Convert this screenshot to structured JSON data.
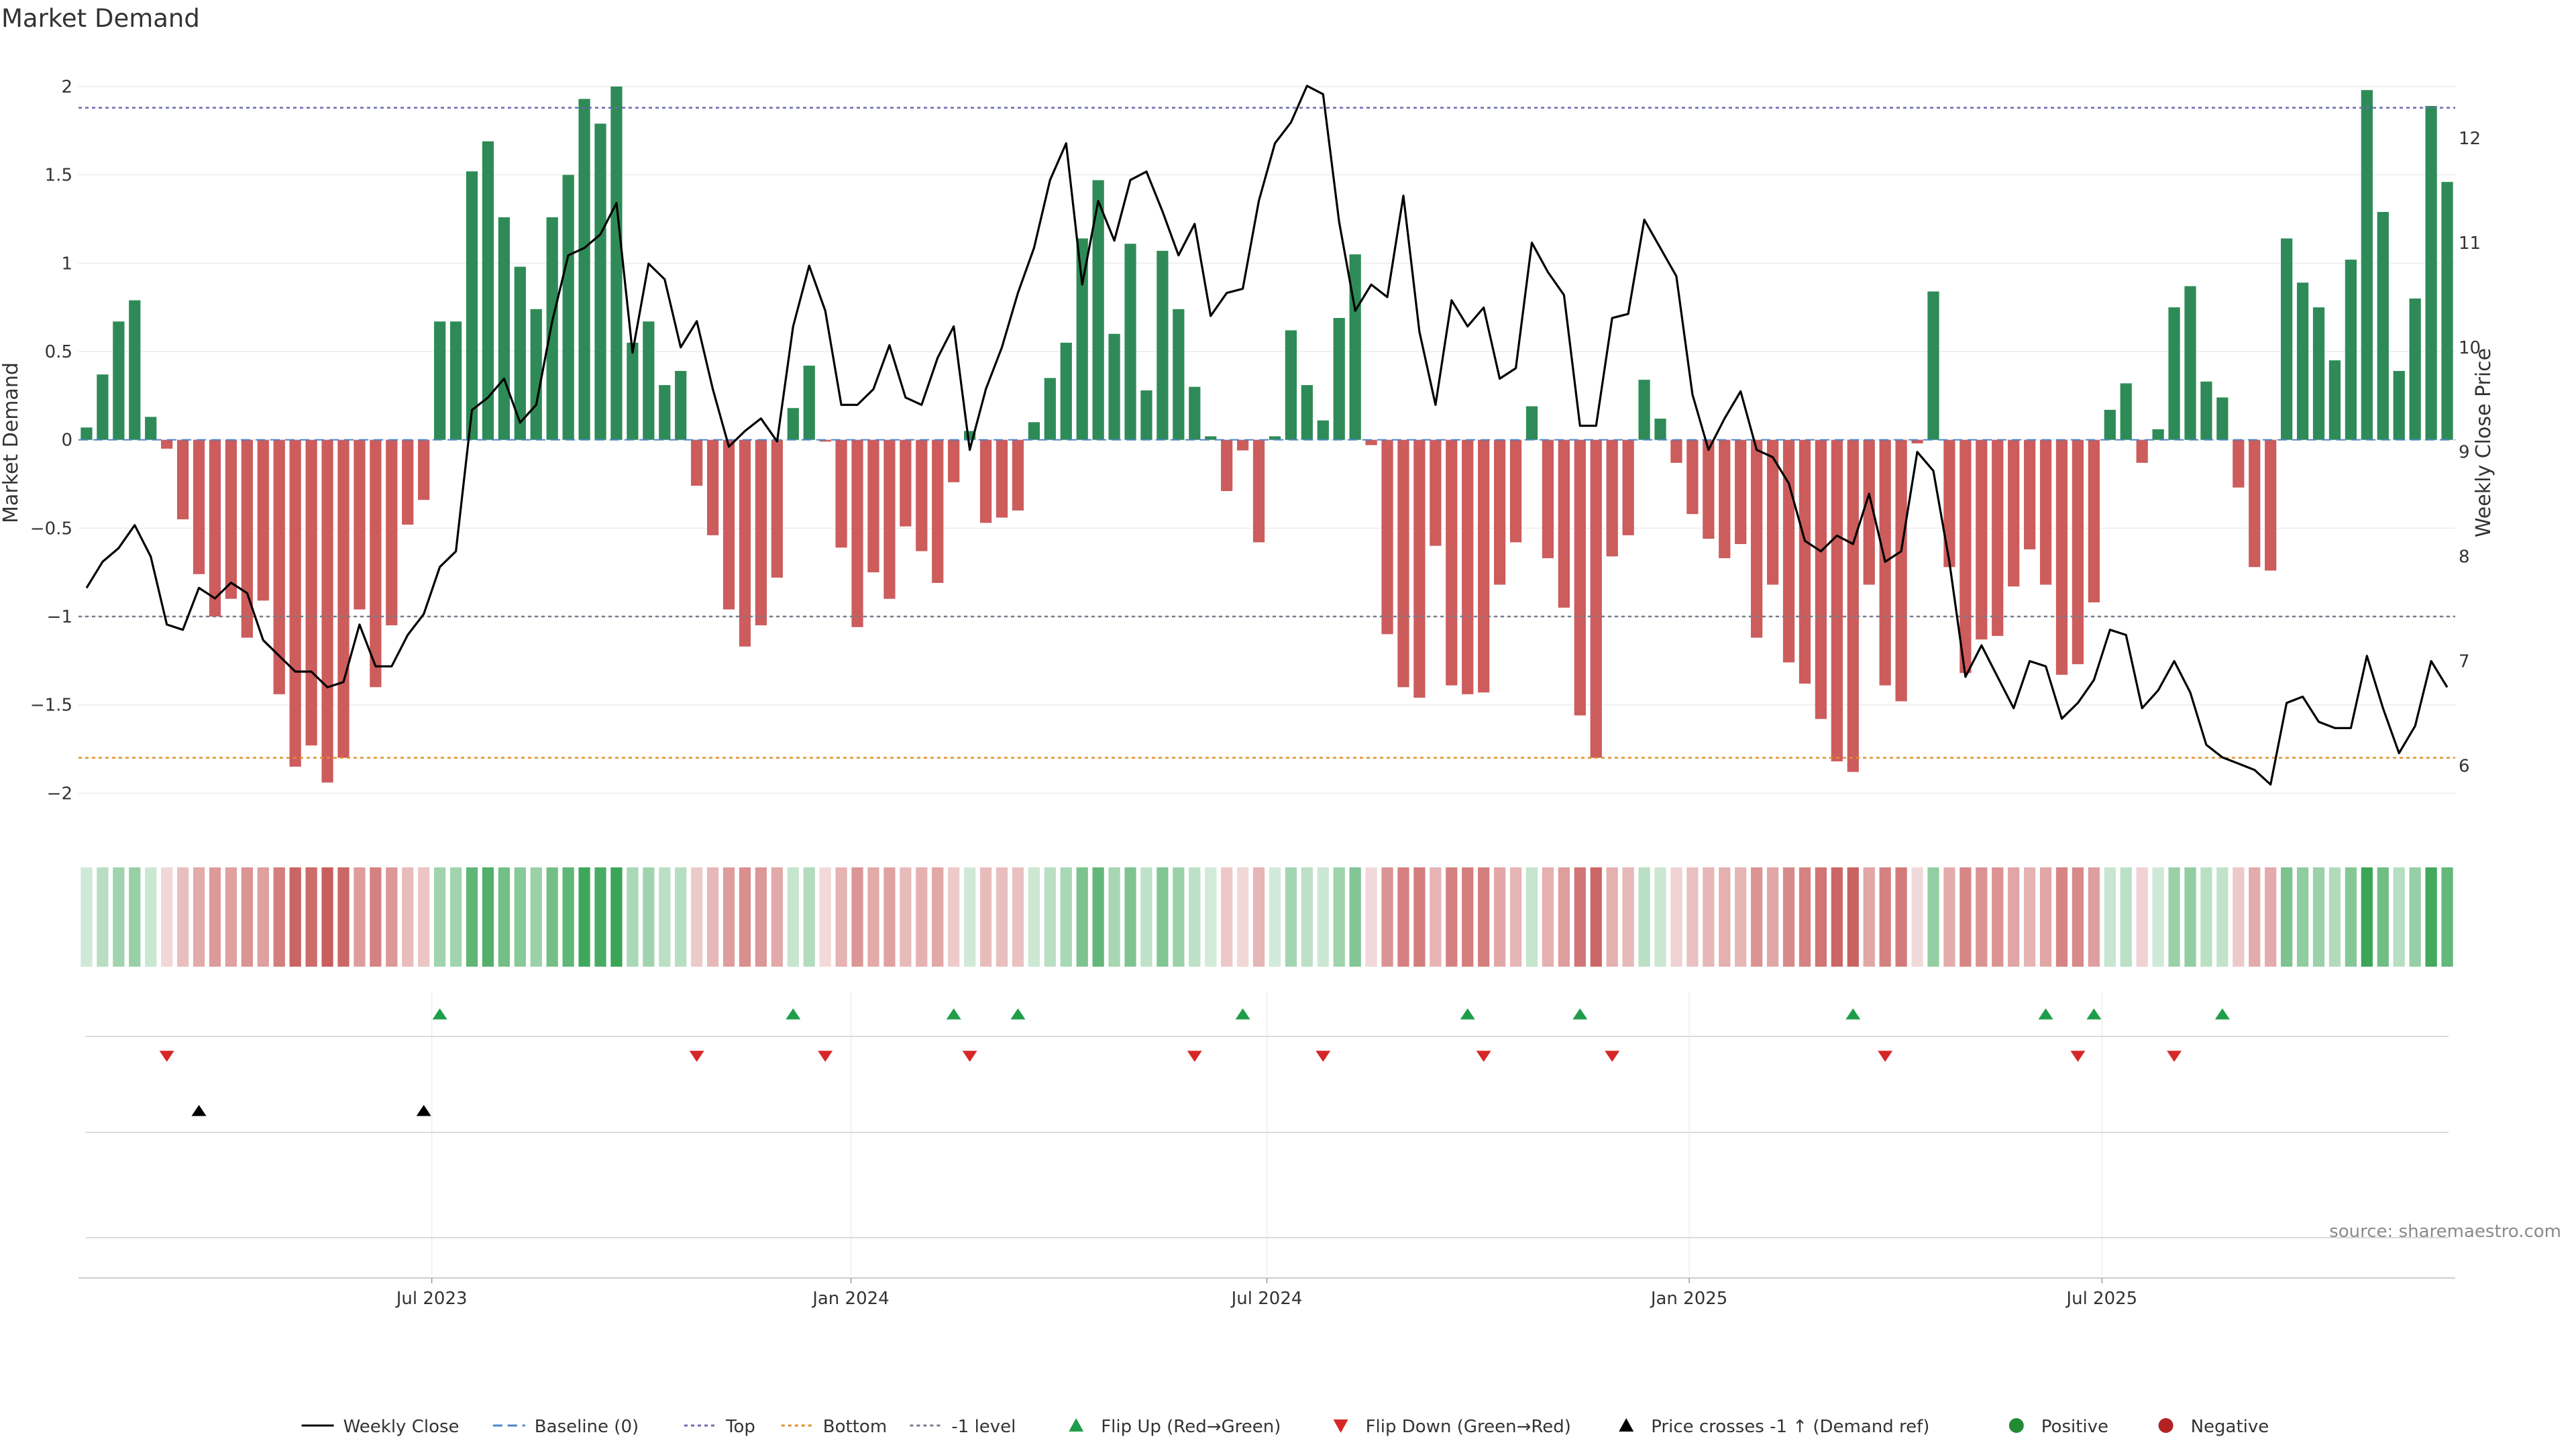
{
  "chart_data": {
    "type": "bar",
    "title": "Market Demand",
    "ylabel_left": "Market Demand",
    "ylabel_right": "Weekly Close Price",
    "ylim_left": [
      -2.2,
      2.3
    ],
    "ylim_right": [
      5.4,
      13.0
    ],
    "yticks_left": [
      2,
      1.5,
      1,
      0.5,
      0,
      -0.5,
      -1,
      -1.5,
      -2
    ],
    "ytick_labels_left": [
      "2",
      "1.5",
      "1",
      "0.5",
      "0",
      "−0.5",
      "−1",
      "−1.5",
      "−2"
    ],
    "yticks_right": [
      12,
      11,
      10,
      9,
      8,
      7,
      6
    ],
    "ytick_labels_right": [
      "12",
      "11",
      "10",
      "9",
      "8",
      "7",
      "6"
    ],
    "x_start_week_index": 0,
    "x_ticks": [
      {
        "week": 21.5,
        "label": "Jul 2023"
      },
      {
        "week": 47.6,
        "label": "Jan 2024"
      },
      {
        "week": 73.5,
        "label": "Jul 2024"
      },
      {
        "week": 99.8,
        "label": "Jan 2025"
      },
      {
        "week": 125.5,
        "label": "Jul 2025"
      }
    ],
    "reference_lines": [
      {
        "name": "Top",
        "value": 1.88,
        "color": "#6b6bb5"
      },
      {
        "name": "Bottom",
        "value": -1.8,
        "color": "#e0902a"
      },
      {
        "name": "-1 level",
        "value": -1.0,
        "color": "#7a7a8a"
      },
      {
        "name": "Baseline (0)",
        "value": 0,
        "color": "#4a86c8"
      }
    ],
    "series": [
      {
        "name": "Market Demand",
        "type": "bar",
        "values": [
          0.07,
          0.37,
          0.67,
          0.79,
          0.13,
          -0.05,
          -0.45,
          -0.76,
          -1.0,
          -0.9,
          -1.12,
          -0.91,
          -1.44,
          -1.85,
          -1.73,
          -1.94,
          -1.8,
          -0.96,
          -1.4,
          -1.05,
          -0.48,
          -0.34,
          0.67,
          0.67,
          1.52,
          1.69,
          1.26,
          0.98,
          0.74,
          1.26,
          1.5,
          1.93,
          1.79,
          2.0,
          0.55,
          0.67,
          0.31,
          0.39,
          -0.26,
          -0.54,
          -0.96,
          -1.17,
          -1.05,
          -0.78,
          0.18,
          0.42,
          -0.01,
          -0.61,
          -1.06,
          -0.75,
          -0.9,
          -0.49,
          -0.63,
          -0.81,
          -0.24,
          0.05,
          -0.47,
          -0.44,
          -0.4,
          0.1,
          0.35,
          0.55,
          1.14,
          1.47,
          0.6,
          1.11,
          0.28,
          1.07,
          0.74,
          0.3,
          0.02,
          -0.29,
          -0.06,
          -0.58,
          0.02,
          0.62,
          0.31,
          0.11,
          0.69,
          1.05,
          -0.03,
          -1.1,
          -1.4,
          -1.46,
          -0.6,
          -1.39,
          -1.44,
          -1.43,
          -0.82,
          -0.58,
          0.19,
          -0.67,
          -0.95,
          -1.56,
          -1.8,
          -0.66,
          -0.54,
          0.34,
          0.12,
          -0.13,
          -0.42,
          -0.56,
          -0.67,
          -0.59,
          -1.12,
          -0.82,
          -1.26,
          -1.38,
          -1.58,
          -1.82,
          -1.88,
          -0.82,
          -1.39,
          -1.48,
          -0.02,
          0.84,
          -0.72,
          -1.32,
          -1.13,
          -1.11,
          -0.83,
          -0.62,
          -0.82,
          -1.33,
          -1.27,
          -0.92,
          0.17,
          0.32,
          -0.13,
          0.06,
          0.75,
          0.87,
          0.33,
          0.24,
          -0.27,
          -0.72,
          -0.74,
          1.14,
          0.89,
          0.75,
          0.45,
          1.02,
          1.98,
          1.29,
          0.39,
          0.8,
          1.89,
          1.46
        ]
      },
      {
        "name": "Weekly Close",
        "type": "line",
        "axis": "right",
        "values": [
          7.7,
          7.95,
          8.08,
          8.3,
          8.0,
          7.35,
          7.3,
          7.7,
          7.6,
          7.75,
          7.65,
          7.2,
          7.05,
          6.9,
          6.9,
          6.75,
          6.8,
          7.35,
          6.95,
          6.95,
          7.25,
          7.45,
          7.9,
          8.05,
          9.4,
          9.52,
          9.7,
          9.28,
          9.45,
          10.25,
          10.88,
          10.95,
          11.08,
          11.38,
          9.95,
          10.8,
          10.65,
          10.0,
          10.25,
          9.6,
          9.05,
          9.2,
          9.32,
          9.1,
          10.2,
          10.78,
          10.35,
          9.45,
          9.45,
          9.6,
          10.02,
          9.52,
          9.45,
          9.9,
          10.2,
          9.02,
          9.6,
          10.0,
          10.52,
          10.95,
          11.6,
          11.95,
          10.6,
          11.4,
          11.02,
          11.6,
          11.68,
          11.3,
          10.88,
          11.18,
          10.3,
          10.52,
          10.56,
          11.4,
          11.95,
          12.15,
          12.5,
          12.42,
          11.2,
          10.35,
          10.6,
          10.48,
          11.45,
          10.15,
          9.45,
          10.45,
          10.2,
          10.38,
          9.7,
          9.8,
          11.0,
          10.72,
          10.5,
          9.25,
          9.25,
          10.28,
          10.32,
          11.22,
          10.95,
          10.68,
          9.55,
          9.02,
          9.32,
          9.58,
          9.02,
          8.95,
          8.7,
          8.15,
          8.05,
          8.2,
          8.12,
          8.6,
          7.95,
          8.05,
          9.0,
          8.82,
          7.95,
          6.85,
          7.15,
          6.85,
          6.55,
          7.0,
          6.95,
          6.45,
          6.6,
          6.82,
          7.3,
          7.25,
          6.55,
          6.72,
          7.0,
          6.7,
          6.2,
          6.08,
          6.02,
          5.96,
          5.82,
          6.6,
          6.66,
          6.42,
          6.36,
          6.36,
          7.05,
          6.55,
          6.12,
          6.38,
          7.0,
          6.75
        ]
      },
      {
        "name": "Flip Up (Red→Green)",
        "type": "markers",
        "weeks": [
          22,
          44,
          54,
          58,
          72,
          86,
          93,
          110,
          122,
          125,
          133
        ]
      },
      {
        "name": "Flip Down (Green→Red)",
        "type": "markers",
        "weeks": [
          5,
          38,
          46,
          55,
          69,
          77,
          87,
          95,
          112,
          124,
          130
        ]
      },
      {
        "name": "Price crosses -1 ↑ (Demand ref)",
        "type": "markers",
        "weeks": [
          7,
          21
        ]
      }
    ],
    "colors": {
      "positive_bar": "#2e8b57",
      "negative_bar": "#cd5c5c",
      "positive_strip": "#3aa556",
      "negative_strip": "#c85a5a",
      "flip_up": "#1f9e4a",
      "flip_down": "#d62728",
      "cross": "#000000",
      "line": "#000000",
      "positive_dot": "#238b34",
      "negative_dot": "#b22222"
    },
    "legend": {
      "position": "bottom-center",
      "items": [
        {
          "label": "Weekly Close",
          "kind": "line"
        },
        {
          "label": "Baseline (0)",
          "kind": "dash"
        },
        {
          "label": "Top",
          "kind": "dot"
        },
        {
          "label": "Bottom",
          "kind": "dot-orange"
        },
        {
          "label": "-1 level",
          "kind": "dot-gray"
        },
        {
          "label": "Flip Up (Red→Green)",
          "kind": "tri-up-green"
        },
        {
          "label": "Flip Down (Green→Red)",
          "kind": "tri-down-red"
        },
        {
          "label": "Price crosses -1 ↑ (Demand ref)",
          "kind": "tri-up-black"
        },
        {
          "label": "Positive",
          "kind": "dot-green"
        },
        {
          "label": "Negative",
          "kind": "dot-red"
        }
      ]
    },
    "source": "source: sharemaestro.com"
  }
}
